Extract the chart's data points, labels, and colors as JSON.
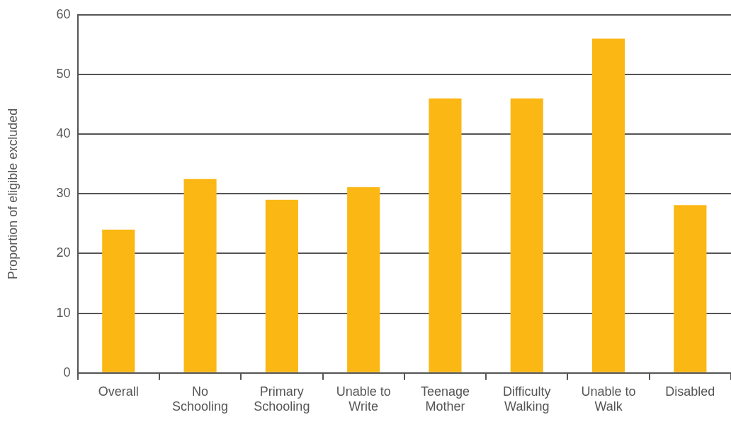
{
  "chart_data": {
    "type": "bar",
    "ylabel": "Proportion of eligible excluded",
    "categories": [
      "Overall",
      "No Schooling",
      "Primary Schooling",
      "Unable to Write",
      "Teenage Mother",
      "Difficulty Walking",
      "Unable to Walk",
      "Disabled"
    ],
    "values": [
      24,
      32.5,
      29,
      31.1,
      46,
      46,
      56,
      28.1
    ],
    "color": "#fbb713",
    "ylim": [
      0,
      60
    ],
    "yticks": [
      0,
      10,
      20,
      30,
      40,
      50,
      60
    ],
    "grid": "y",
    "legend": false
  }
}
